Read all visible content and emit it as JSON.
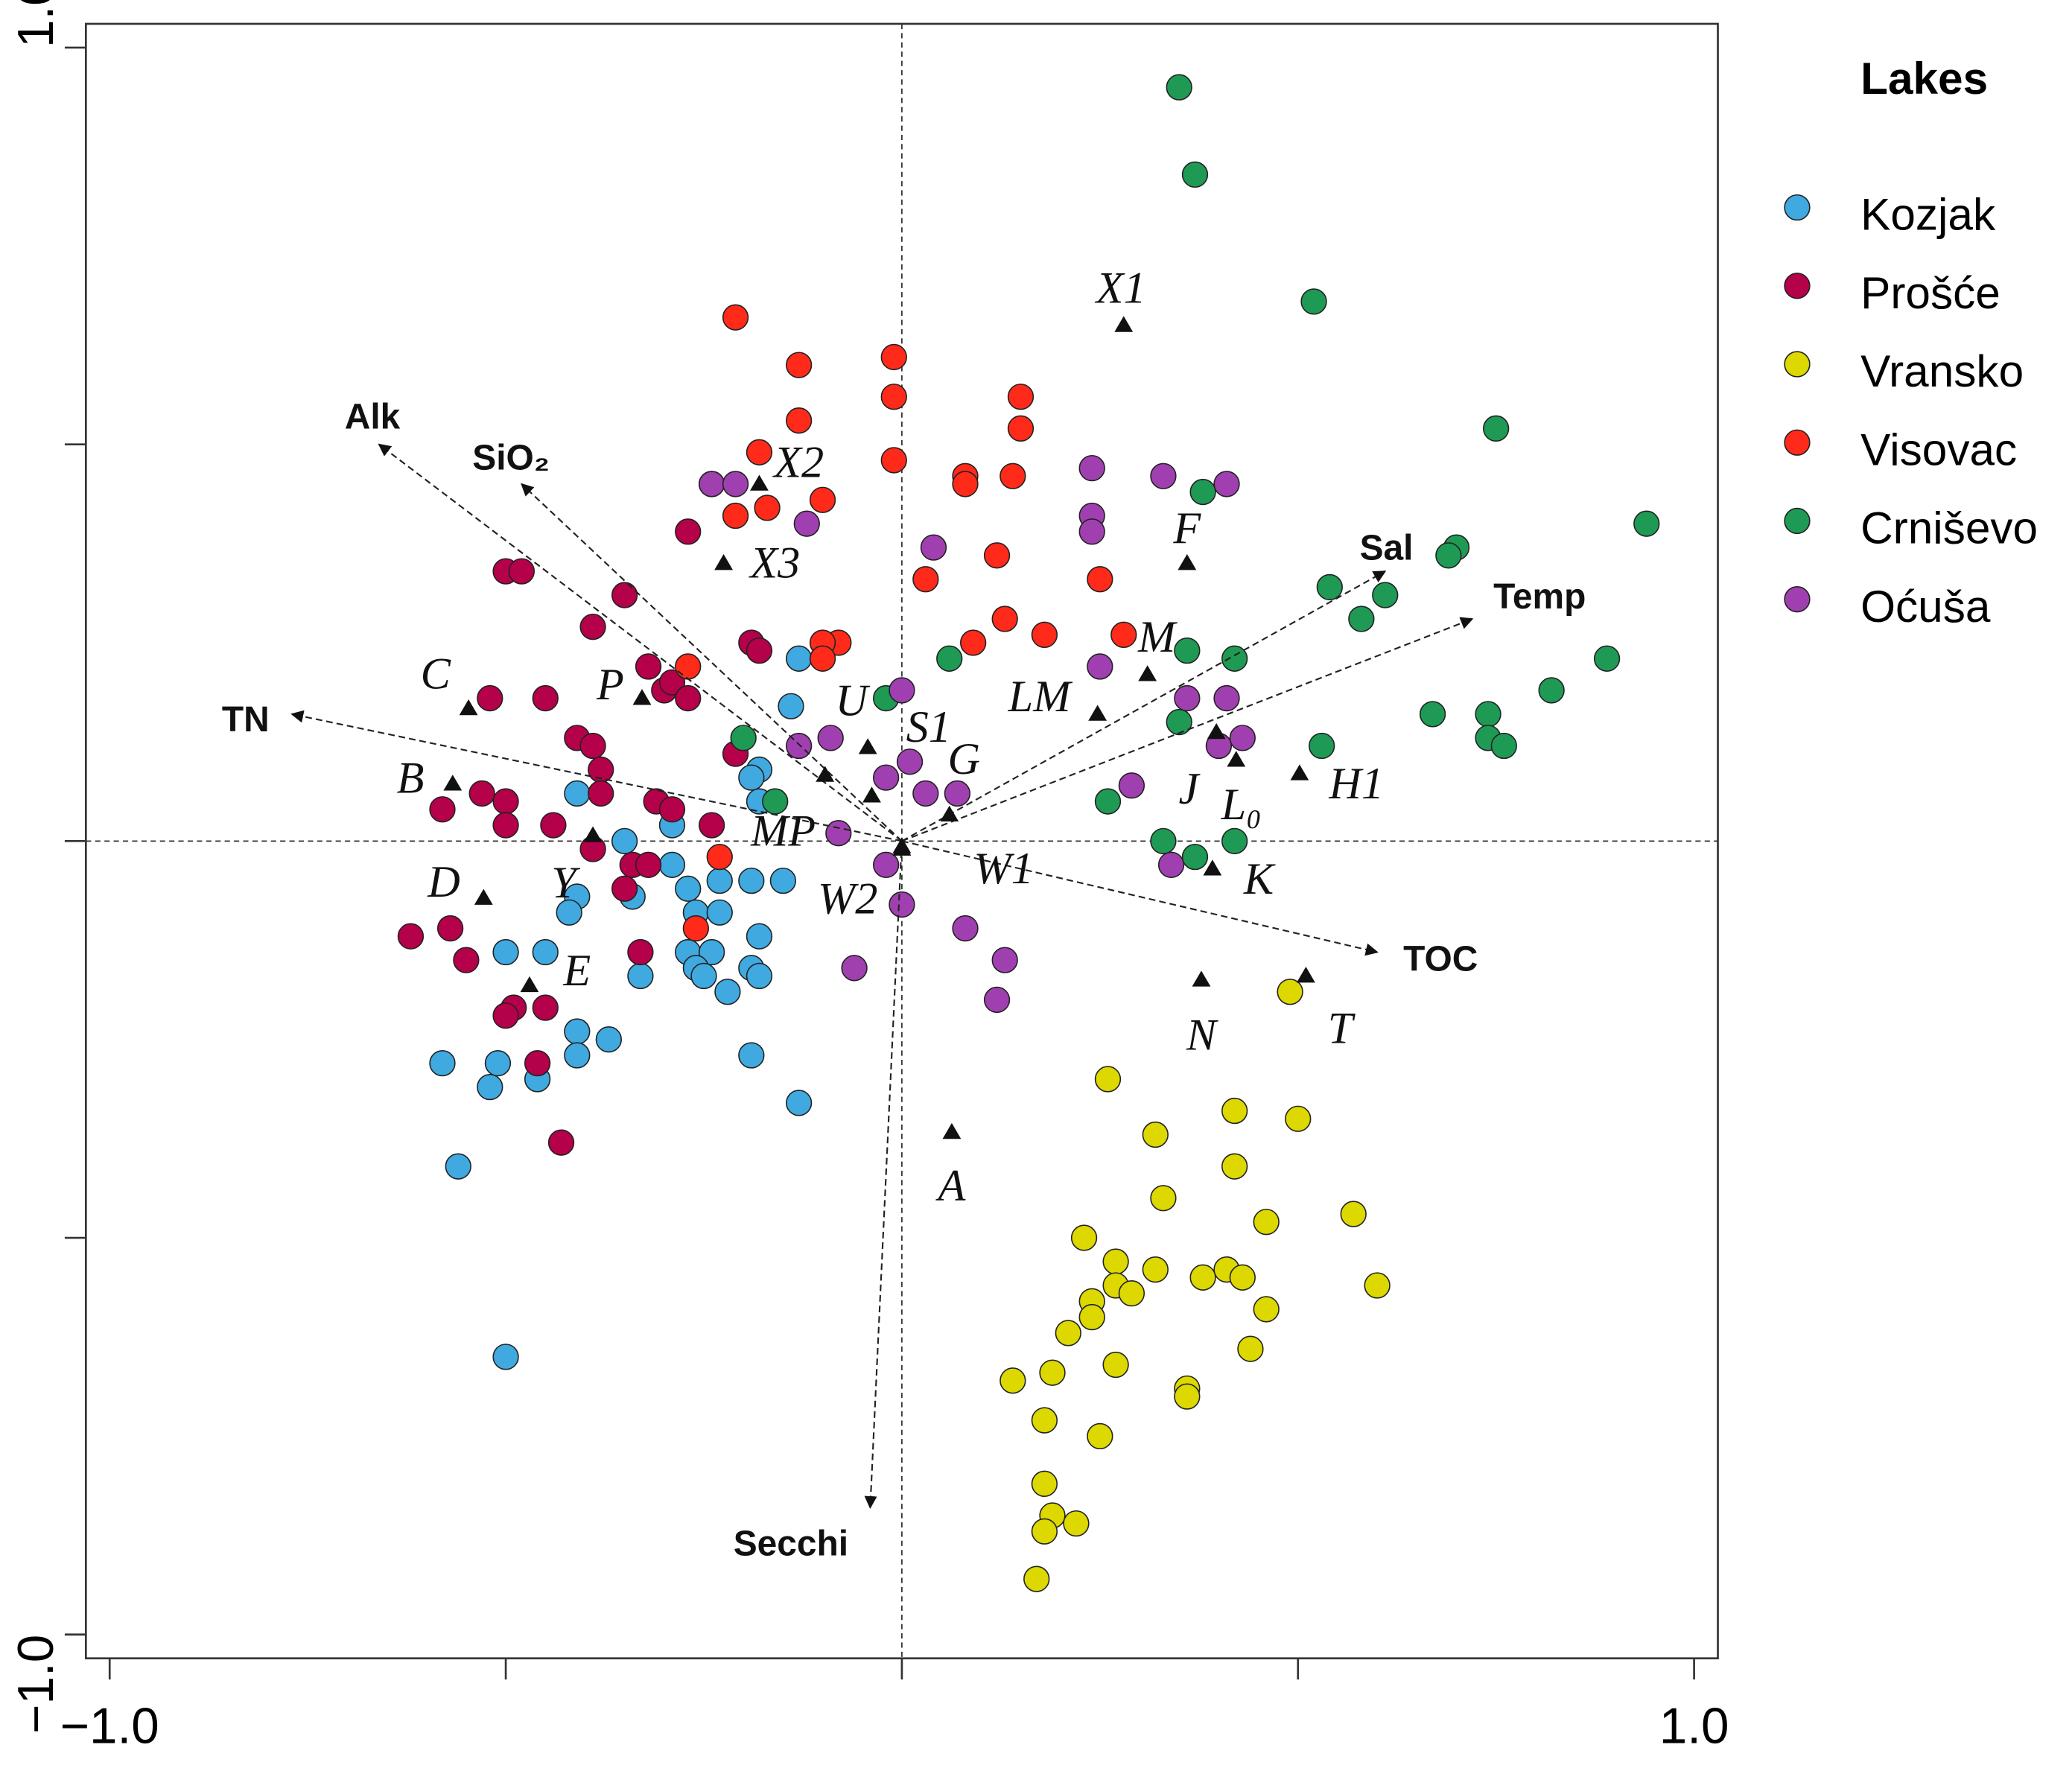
{
  "chart_data": {
    "type": "biplot",
    "xlim": [
      -1.03,
      1.03
    ],
    "ylim": [
      -1.03,
      1.03
    ],
    "xticks": [
      {
        "value": -1,
        "label": "−1.0"
      },
      {
        "value": -0.5,
        "label": null
      },
      {
        "value": 0,
        "label": null
      },
      {
        "value": 0.5,
        "label": null
      },
      {
        "value": 1,
        "label": "1.0"
      }
    ],
    "yticks": [
      {
        "value": -1,
        "label": "−1.0"
      },
      {
        "value": -0.5,
        "label": null
      },
      {
        "value": 0,
        "label": null
      },
      {
        "value": 0.5,
        "label": null
      },
      {
        "value": 1,
        "label": "1.0"
      }
    ],
    "zero_lines": true,
    "legend_title": "Lakes",
    "legend_position": "right",
    "series": [
      {
        "name": "Kozjak",
        "color": "#3fa9e0",
        "x": [
          -0.13,
          -0.14,
          -0.18,
          -0.19,
          -0.18,
          -0.41,
          -0.35,
          -0.29,
          -0.29,
          -0.23,
          -0.27,
          -0.19,
          -0.15,
          -0.41,
          -0.42,
          -0.34,
          -0.26,
          -0.23,
          -0.5,
          -0.45,
          -0.33,
          -0.27,
          -0.24,
          -0.18,
          -0.26,
          -0.22,
          -0.19,
          -0.41,
          -0.41,
          -0.37,
          -0.58,
          -0.51,
          -0.52,
          -0.46,
          -0.19,
          -0.13,
          -0.56,
          -0.5,
          -0.25,
          -0.18
        ],
        "y": [
          0.23,
          0.17,
          0.09,
          0.08,
          0.05,
          0.06,
          0.0,
          0.02,
          -0.03,
          -0.05,
          -0.06,
          -0.05,
          -0.05,
          -0.07,
          -0.09,
          -0.07,
          -0.09,
          -0.09,
          -0.14,
          -0.14,
          -0.17,
          -0.14,
          -0.14,
          -0.12,
          -0.16,
          -0.19,
          -0.16,
          -0.24,
          -0.27,
          -0.25,
          -0.28,
          -0.28,
          -0.31,
          -0.3,
          -0.27,
          -0.33,
          -0.41,
          -0.65,
          -0.17,
          -0.17
        ]
      },
      {
        "name": "Prošće",
        "color": "#b5004a",
        "x": [
          -0.5,
          -0.48,
          -0.39,
          -0.35,
          -0.27,
          -0.24,
          -0.19,
          -0.18,
          -0.52,
          -0.45,
          -0.32,
          -0.3,
          -0.29,
          -0.27,
          -0.41,
          -0.39,
          -0.38,
          -0.38,
          -0.21,
          -0.53,
          -0.5,
          -0.5,
          -0.58,
          -0.44,
          -0.31,
          -0.29,
          -0.24,
          -0.39,
          -0.34,
          -0.32,
          -0.35,
          -0.62,
          -0.57,
          -0.55,
          -0.33,
          -0.49,
          -0.5,
          -0.45,
          -0.46,
          -0.43
        ],
        "y": [
          0.34,
          0.34,
          0.27,
          0.31,
          0.39,
          0.45,
          0.25,
          0.24,
          0.18,
          0.18,
          0.22,
          0.19,
          0.2,
          0.18,
          0.13,
          0.12,
          0.09,
          0.06,
          0.11,
          0.06,
          0.05,
          0.02,
          0.04,
          0.02,
          0.05,
          0.04,
          0.02,
          -0.01,
          -0.03,
          -0.03,
          -0.06,
          -0.12,
          -0.11,
          -0.15,
          -0.14,
          -0.21,
          -0.22,
          -0.21,
          -0.28,
          -0.38
        ]
      },
      {
        "name": "Vransko",
        "color": "#dcd800",
        "x": [
          0.26,
          0.32,
          0.42,
          0.5,
          0.49,
          0.42,
          0.33,
          0.46,
          0.57,
          0.23,
          0.27,
          0.32,
          0.38,
          0.41,
          0.43,
          0.6,
          0.24,
          0.27,
          0.29,
          0.24,
          0.46,
          0.21,
          0.44,
          0.27,
          0.19,
          0.14,
          0.36,
          0.36,
          0.18,
          0.25,
          0.18,
          0.19,
          0.18,
          0.22,
          0.17
        ],
        "y": [
          -0.3,
          -0.37,
          -0.34,
          -0.35,
          -0.19,
          -0.41,
          -0.45,
          -0.48,
          -0.47,
          -0.5,
          -0.53,
          -0.54,
          -0.55,
          -0.54,
          -0.55,
          -0.56,
          -0.58,
          -0.56,
          -0.57,
          -0.6,
          -0.59,
          -0.62,
          -0.64,
          -0.66,
          -0.67,
          -0.68,
          -0.69,
          -0.7,
          -0.73,
          -0.75,
          -0.81,
          -0.85,
          -0.87,
          -0.86,
          -0.93
        ]
      },
      {
        "name": "Visovac",
        "color": "#ff2a1a",
        "x": [
          -0.21,
          -0.13,
          -0.01,
          -0.01,
          -0.13,
          -0.18,
          -0.01,
          0.15,
          0.15,
          0.08,
          0.08,
          0.14,
          -0.21,
          -0.17,
          -0.1,
          0.12,
          0.03,
          0.25,
          0.13,
          0.28,
          0.18,
          0.09,
          -0.08,
          -0.1,
          -0.1,
          -0.27,
          -0.23,
          -0.26
        ],
        "y": [
          0.66,
          0.6,
          0.61,
          0.56,
          0.53,
          0.49,
          0.48,
          0.56,
          0.52,
          0.46,
          0.45,
          0.46,
          0.41,
          0.42,
          0.43,
          0.36,
          0.33,
          0.33,
          0.28,
          0.26,
          0.26,
          0.25,
          0.25,
          0.25,
          0.23,
          0.22,
          -0.02,
          -0.11
        ]
      },
      {
        "name": "Crniševo",
        "color": "#1e9a55",
        "x": [
          0.35,
          0.37,
          0.52,
          0.75,
          0.94,
          0.38,
          0.7,
          0.69,
          0.54,
          0.61,
          0.58,
          0.36,
          0.42,
          0.89,
          0.82,
          0.06,
          -0.02,
          0.35,
          0.67,
          0.74,
          0.74,
          0.76,
          0.53,
          -0.2,
          -0.16,
          0.26,
          0.33,
          0.42,
          0.37
        ],
        "y": [
          0.95,
          0.84,
          0.68,
          0.52,
          0.4,
          0.44,
          0.37,
          0.36,
          0.32,
          0.31,
          0.28,
          0.24,
          0.23,
          0.23,
          0.19,
          0.23,
          0.18,
          0.15,
          0.16,
          0.16,
          0.13,
          0.12,
          0.12,
          0.13,
          0.05,
          0.05,
          0.0,
          0.0,
          -0.02
        ]
      },
      {
        "name": "Oćuša",
        "color": "#a040b0",
        "x": [
          -0.24,
          -0.21,
          -0.12,
          0.24,
          0.33,
          0.41,
          0.24,
          0.24,
          0.04,
          0.25,
          0.0,
          0.36,
          0.41,
          -0.09,
          -0.13,
          0.4,
          0.43,
          0.01,
          -0.02,
          0.29,
          0.03,
          0.07,
          -0.08,
          0.34,
          -0.02,
          0.0,
          0.08,
          0.13,
          -0.06,
          0.12
        ],
        "y": [
          0.45,
          0.45,
          0.4,
          0.47,
          0.46,
          0.45,
          0.41,
          0.39,
          0.37,
          0.22,
          0.19,
          0.18,
          0.18,
          0.13,
          0.12,
          0.12,
          0.13,
          0.1,
          0.08,
          0.07,
          0.06,
          0.06,
          0.01,
          -0.03,
          -0.03,
          -0.08,
          -0.11,
          -0.15,
          -0.16,
          -0.2
        ]
      }
    ],
    "vectors": [
      {
        "name": "Alk",
        "x": -0.66,
        "y": 0.5
      },
      {
        "name": "SiO₂",
        "x": -0.48,
        "y": 0.45
      },
      {
        "name": "TN",
        "x": -0.77,
        "y": 0.16
      },
      {
        "name": "Sal",
        "x": 0.61,
        "y": 0.34
      },
      {
        "name": "Temp",
        "x": 0.72,
        "y": 0.28
      },
      {
        "name": "TOC",
        "x": 0.6,
        "y": -0.14
      },
      {
        "name": "Secchi",
        "x": -0.04,
        "y": -0.84
      }
    ],
    "sites": [
      {
        "label": "X1",
        "x": 0.28,
        "y": 0.65
      },
      {
        "label": "X2",
        "x": -0.18,
        "y": 0.45
      },
      {
        "label": "X3",
        "x": -0.225,
        "y": 0.35
      },
      {
        "label": "F",
        "x": 0.36,
        "y": 0.35
      },
      {
        "label": "M",
        "x": 0.31,
        "y": 0.21
      },
      {
        "label": "LM",
        "x": 0.247,
        "y": 0.16
      },
      {
        "label": "C",
        "x": -0.547,
        "y": 0.167
      },
      {
        "label": "P",
        "x": -0.328,
        "y": 0.18
      },
      {
        "label": "U",
        "x": -0.097,
        "y": 0.083
      },
      {
        "label": "S1",
        "x": -0.043,
        "y": 0.118
      },
      {
        "label": "G",
        "x": 0.06,
        "y": 0.033
      },
      {
        "label": "B",
        "x": -0.567,
        "y": 0.072
      },
      {
        "label": "J",
        "x": 0.397,
        "y": 0.137
      },
      {
        "label": "L₀",
        "x": 0.422,
        "y": 0.102
      },
      {
        "label": "H1",
        "x": 0.502,
        "y": 0.085
      },
      {
        "label": "MP",
        "x": -0.038,
        "y": 0.057
      },
      {
        "label": "W1",
        "x": 0,
        "y": -0.007
      },
      {
        "label": "W2",
        "x": 0,
        "y": -0.01
      },
      {
        "label": "Y",
        "x": -0.39,
        "y": 0.007
      },
      {
        "label": "D",
        "x": -0.528,
        "y": -0.072
      },
      {
        "label": "K",
        "x": 0.392,
        "y": -0.035
      },
      {
        "label": "E",
        "x": -0.47,
        "y": -0.182
      },
      {
        "label": "N",
        "x": 0.378,
        "y": -0.175
      },
      {
        "label": "T",
        "x": 0.51,
        "y": -0.17
      },
      {
        "label": "A",
        "x": 0.063,
        "y": -0.367
      }
    ]
  }
}
